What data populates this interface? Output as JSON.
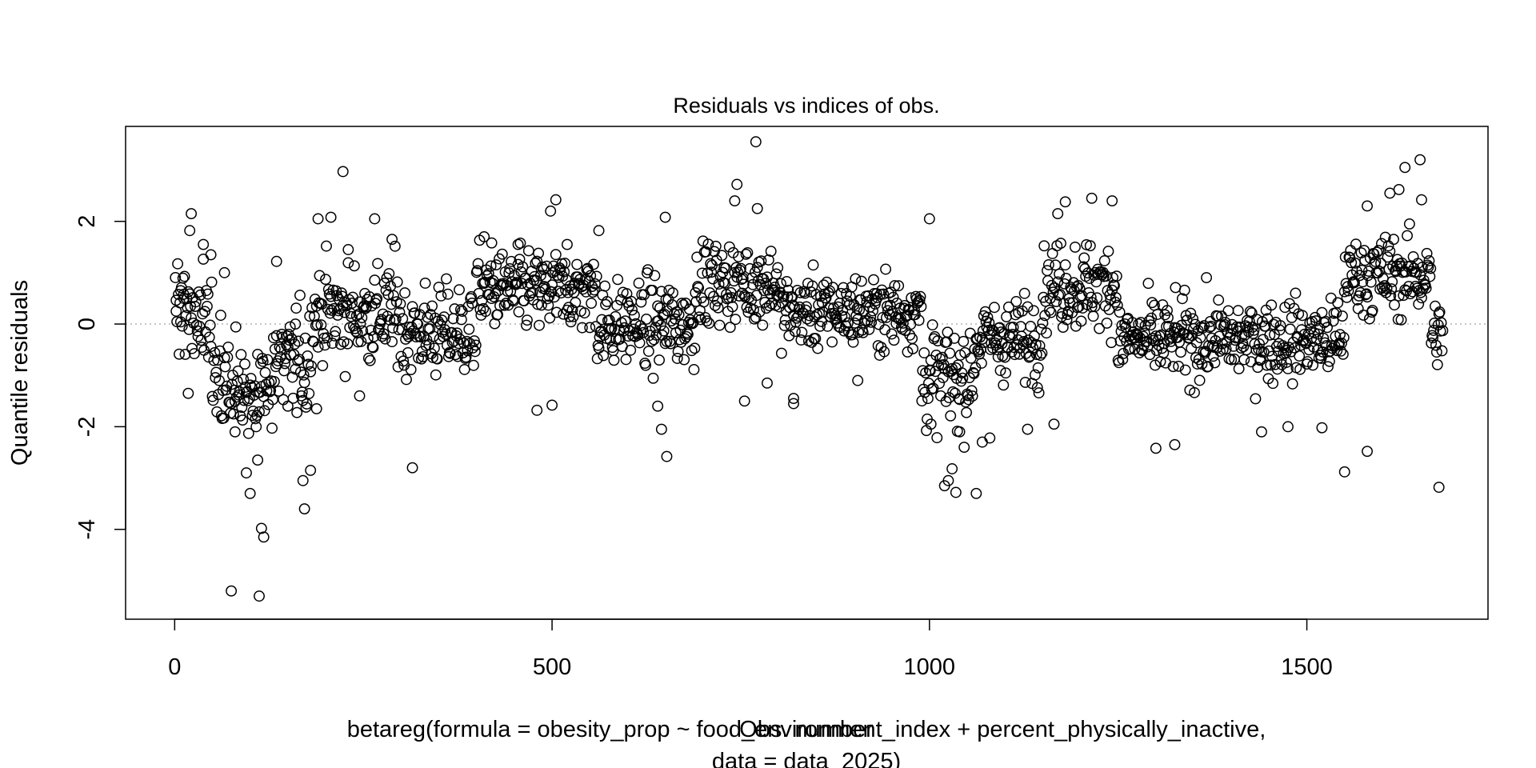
{
  "chart_data": {
    "type": "scatter",
    "title": "Residuals vs indices of obs.",
    "xlabel": "Obs. number",
    "ylabel": "Quantile residuals",
    "subtitle": [
      "betareg(formula = obesity_prop ~ food_environment_index + percent_physically_inactive,",
      "data = data_2025)"
    ],
    "xlim": [
      -65,
      1740
    ],
    "ylim": [
      -5.75,
      3.85
    ],
    "xticks": [
      0,
      500,
      1000,
      1500
    ],
    "yticks": [
      -4,
      -2,
      0,
      2
    ],
    "reference_line": {
      "y": 0,
      "style": "dotted",
      "color": "#b3b3b3"
    },
    "n_points": 1680,
    "highlighted_points": [
      {
        "x": 2,
        "y": 0.25
      },
      {
        "x": 8,
        "y": 0.65
      },
      {
        "x": 12,
        "y": 0.58
      },
      {
        "x": 18,
        "y": -1.35
      },
      {
        "x": 20,
        "y": 1.82
      },
      {
        "x": 22,
        "y": 2.15
      },
      {
        "x": 38,
        "y": 1.55
      },
      {
        "x": 48,
        "y": 1.35
      },
      {
        "x": 66,
        "y": 1.0
      },
      {
        "x": 75,
        "y": -5.2
      },
      {
        "x": 80,
        "y": -2.1
      },
      {
        "x": 95,
        "y": -2.9
      },
      {
        "x": 100,
        "y": -3.3
      },
      {
        "x": 110,
        "y": -2.65
      },
      {
        "x": 112,
        "y": -5.3
      },
      {
        "x": 115,
        "y": -3.98
      },
      {
        "x": 118,
        "y": -4.15
      },
      {
        "x": 135,
        "y": 1.22
      },
      {
        "x": 150,
        "y": -1.6
      },
      {
        "x": 160,
        "y": 0.0
      },
      {
        "x": 170,
        "y": -3.05
      },
      {
        "x": 172,
        "y": -3.6
      },
      {
        "x": 180,
        "y": -2.85
      },
      {
        "x": 188,
        "y": -1.65
      },
      {
        "x": 190,
        "y": 2.05
      },
      {
        "x": 207,
        "y": 2.08
      },
      {
        "x": 223,
        "y": 2.97
      },
      {
        "x": 230,
        "y": 1.45
      },
      {
        "x": 245,
        "y": -1.4
      },
      {
        "x": 265,
        "y": 2.05
      },
      {
        "x": 288,
        "y": 1.65
      },
      {
        "x": 315,
        "y": -2.8
      },
      {
        "x": 410,
        "y": 1.7
      },
      {
        "x": 420,
        "y": 1.58
      },
      {
        "x": 455,
        "y": 1.55
      },
      {
        "x": 480,
        "y": -1.68
      },
      {
        "x": 498,
        "y": 2.2
      },
      {
        "x": 500,
        "y": -1.58
      },
      {
        "x": 505,
        "y": 2.42
      },
      {
        "x": 520,
        "y": 1.55
      },
      {
        "x": 562,
        "y": 1.82
      },
      {
        "x": 640,
        "y": -1.6
      },
      {
        "x": 645,
        "y": -2.05
      },
      {
        "x": 650,
        "y": 2.08
      },
      {
        "x": 652,
        "y": -2.58
      },
      {
        "x": 742,
        "y": 2.4
      },
      {
        "x": 745,
        "y": 2.72
      },
      {
        "x": 755,
        "y": -1.5
      },
      {
        "x": 770,
        "y": 3.55
      },
      {
        "x": 772,
        "y": 2.25
      },
      {
        "x": 785,
        "y": -1.15
      },
      {
        "x": 820,
        "y": -1.45
      },
      {
        "x": 820,
        "y": -1.55
      },
      {
        "x": 905,
        "y": -1.1
      },
      {
        "x": 1000,
        "y": 2.05
      },
      {
        "x": 1002,
        "y": -1.95
      },
      {
        "x": 1020,
        "y": -3.15
      },
      {
        "x": 1025,
        "y": -3.05
      },
      {
        "x": 1030,
        "y": -2.82
      },
      {
        "x": 1035,
        "y": -3.28
      },
      {
        "x": 1040,
        "y": -2.1
      },
      {
        "x": 1062,
        "y": -3.3
      },
      {
        "x": 1070,
        "y": -2.3
      },
      {
        "x": 1080,
        "y": -2.22
      },
      {
        "x": 1130,
        "y": -2.05
      },
      {
        "x": 1165,
        "y": -1.95
      },
      {
        "x": 1170,
        "y": 2.15
      },
      {
        "x": 1180,
        "y": 2.38
      },
      {
        "x": 1215,
        "y": 2.45
      },
      {
        "x": 1242,
        "y": 2.4
      },
      {
        "x": 1300,
        "y": -2.42
      },
      {
        "x": 1325,
        "y": -2.35
      },
      {
        "x": 1440,
        "y": -2.1
      },
      {
        "x": 1475,
        "y": -2.0
      },
      {
        "x": 1520,
        "y": -2.02
      },
      {
        "x": 1550,
        "y": -2.88
      },
      {
        "x": 1580,
        "y": 2.3
      },
      {
        "x": 1580,
        "y": -2.48
      },
      {
        "x": 1610,
        "y": 2.55
      },
      {
        "x": 1622,
        "y": 2.62
      },
      {
        "x": 1630,
        "y": 3.05
      },
      {
        "x": 1650,
        "y": 3.2
      },
      {
        "x": 1652,
        "y": 2.42
      },
      {
        "x": 1675,
        "y": -3.18
      }
    ],
    "segments": [
      {
        "x0": 0,
        "x1": 50,
        "center": 0.2,
        "spread": 0.75
      },
      {
        "x0": 50,
        "x1": 130,
        "center": -1.25,
        "spread": 0.75
      },
      {
        "x0": 130,
        "x1": 180,
        "center": -0.8,
        "spread": 0.85
      },
      {
        "x0": 180,
        "x1": 300,
        "center": 0.2,
        "spread": 0.75
      },
      {
        "x0": 300,
        "x1": 400,
        "center": -0.15,
        "spread": 0.7
      },
      {
        "x0": 400,
        "x1": 560,
        "center": 0.65,
        "spread": 0.6
      },
      {
        "x0": 560,
        "x1": 690,
        "center": 0.0,
        "spread": 0.65
      },
      {
        "x0": 690,
        "x1": 800,
        "center": 0.8,
        "spread": 0.6
      },
      {
        "x0": 800,
        "x1": 990,
        "center": 0.25,
        "spread": 0.55
      },
      {
        "x0": 990,
        "x1": 1060,
        "center": -1.05,
        "spread": 0.75
      },
      {
        "x0": 1060,
        "x1": 1150,
        "center": -0.3,
        "spread": 0.6
      },
      {
        "x0": 1150,
        "x1": 1250,
        "center": 0.75,
        "spread": 0.65
      },
      {
        "x0": 1250,
        "x1": 1550,
        "center": -0.3,
        "spread": 0.6
      },
      {
        "x0": 1550,
        "x1": 1665,
        "center": 0.95,
        "spread": 0.6
      },
      {
        "x0": 1665,
        "x1": 1680,
        "center": -0.2,
        "spread": 0.5
      }
    ]
  }
}
